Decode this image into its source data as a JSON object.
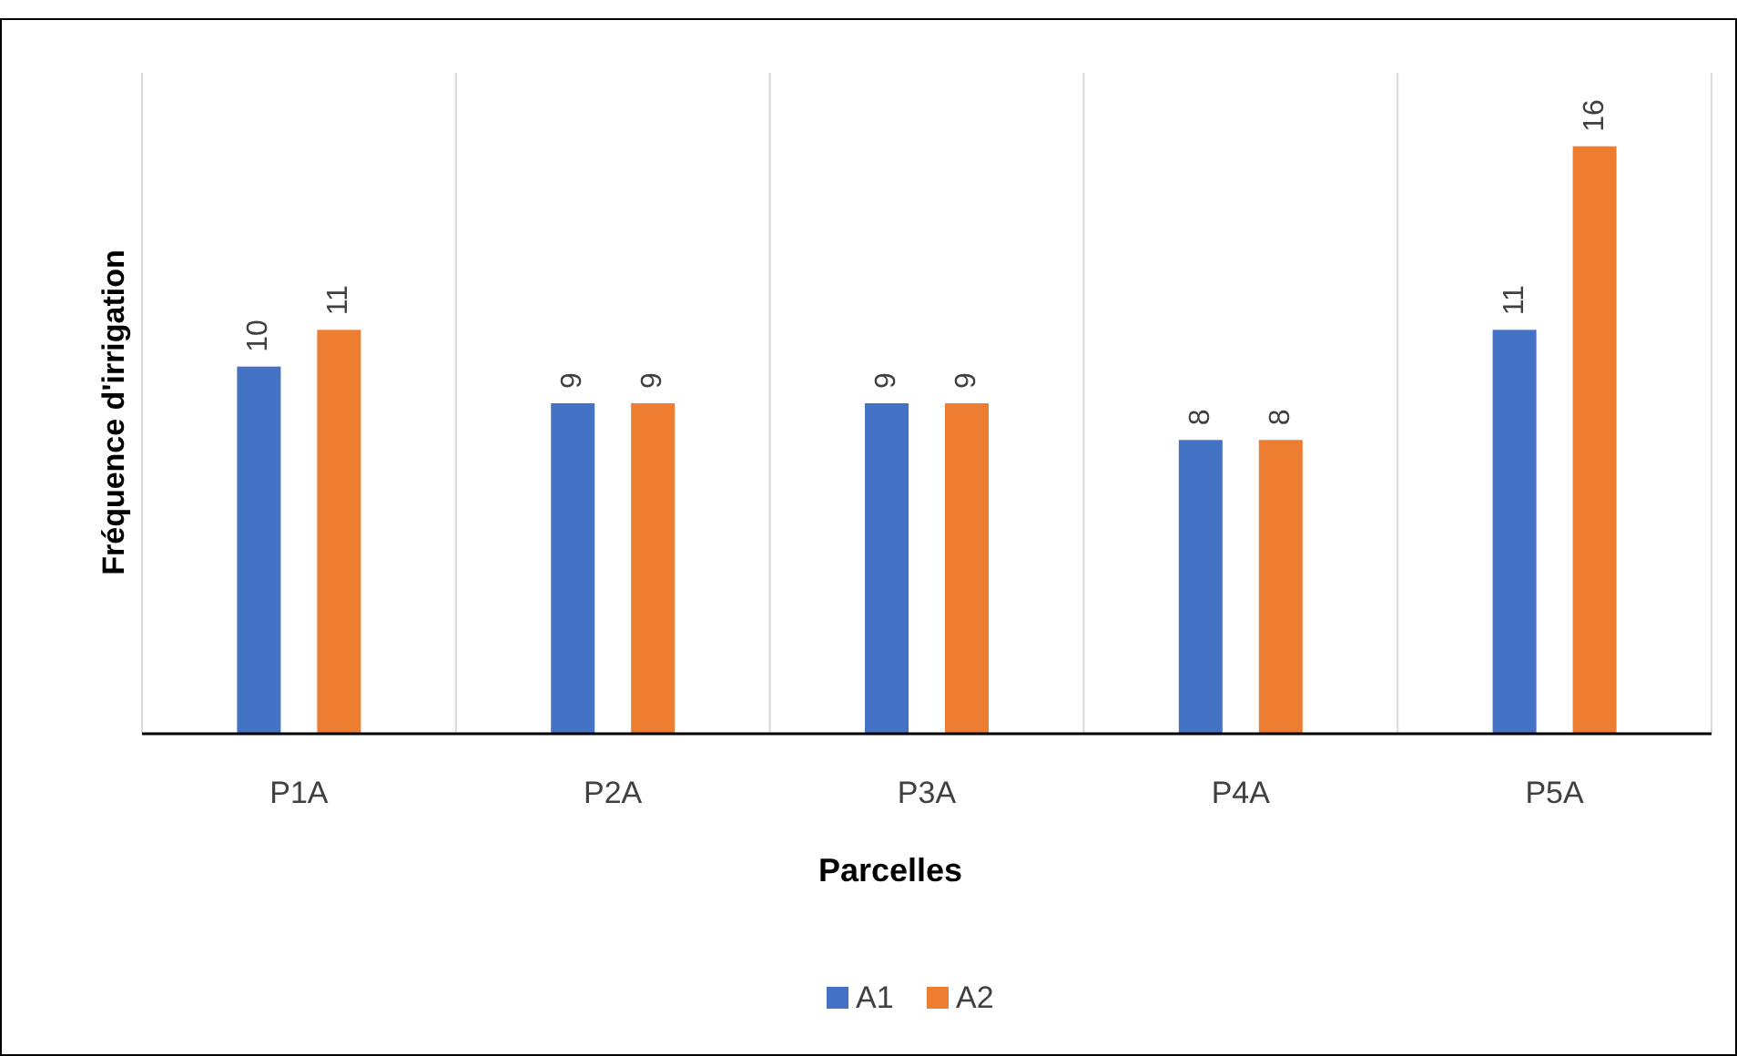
{
  "chart_data": {
    "type": "bar",
    "xlabel": "Parcelles",
    "ylabel": "Fréquence d'irrigation",
    "categories": [
      "P1A",
      "P2A",
      "P3A",
      "P4A",
      "P5A"
    ],
    "series": [
      {
        "name": "A1",
        "color": "#4472c4",
        "values": [
          10,
          9,
          9,
          8,
          11
        ]
      },
      {
        "name": "A2",
        "color": "#ed7d31",
        "values": [
          11,
          9,
          9,
          8,
          16
        ]
      }
    ],
    "data_labels": true,
    "grid": "x",
    "legend": "bottom"
  }
}
